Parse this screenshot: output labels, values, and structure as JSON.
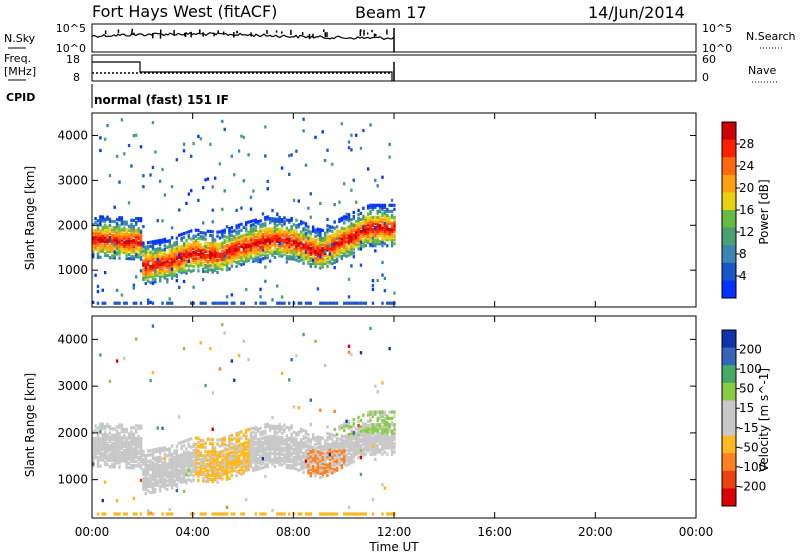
{
  "header": {
    "radar": "Fort Hays West (fitACF)",
    "beam": "Beam 17",
    "date": "14/Jun/2014"
  },
  "summary": {
    "left_labels": {
      "sky": "N.Sky",
      "freq": "Freq.",
      "freq_unit": "[MHz]",
      "cpid": "CPID"
    },
    "right_labels": {
      "search": "N.Search",
      "nave": "Nave"
    },
    "noise_ticks_left": [
      "10^5",
      "10^0"
    ],
    "noise_ticks_right": [
      "10^5",
      "10^0"
    ],
    "freq_ticks": [
      "18",
      "8"
    ],
    "nave_ticks": [
      "60",
      "0"
    ],
    "cpid_text": "normal (fast) 151 IF"
  },
  "colors": {
    "power": [
      "#0033ff",
      "#1a55cc",
      "#3a86b0",
      "#4aa070",
      "#66bb44",
      "#e8d010",
      "#ffa010",
      "#ff6a10",
      "#ff2000",
      "#cc0000"
    ],
    "velocity": [
      "#dd0000",
      "#ee4010",
      "#ff8020",
      "#ffb820",
      "#c8c8c8",
      "#c8c8c8",
      "#88cc44",
      "#44aa66",
      "#3366bb",
      "#1133aa"
    ]
  },
  "chart_data": [
    {
      "type": "heatmap",
      "name": "power-panel",
      "ylabel": "Slant Range [km]",
      "y_ticks": [
        1000,
        2000,
        3000,
        4000
      ],
      "ylim": [
        180,
        4500
      ],
      "x_ticks": [
        "00:00",
        "04:00",
        "08:00",
        "12:00",
        "16:00",
        "20:00",
        "00:00"
      ],
      "xlim_hours": [
        0,
        24
      ],
      "colorbar": {
        "label": "Power [dB]",
        "ticks": [
          "28",
          "24",
          "20",
          "16",
          "12",
          "8",
          "4"
        ]
      },
      "data_extent_hours": [
        0,
        12
      ],
      "main_band": [
        {
          "t": 0.0,
          "range_km": 1750
        },
        {
          "t": 1.95,
          "range_km": 1700
        },
        {
          "t": 2.0,
          "range_km": 1150
        },
        {
          "t": 3.0,
          "range_km": 1250
        },
        {
          "t": 4.0,
          "range_km": 1450
        },
        {
          "t": 5.0,
          "range_km": 1400
        },
        {
          "t": 6.0,
          "range_km": 1600
        },
        {
          "t": 7.0,
          "range_km": 1750
        },
        {
          "t": 8.0,
          "range_km": 1700
        },
        {
          "t": 9.0,
          "range_km": 1450
        },
        {
          "t": 10.0,
          "range_km": 1750
        },
        {
          "t": 11.0,
          "range_km": 2000
        },
        {
          "t": 12.0,
          "range_km": 2000
        }
      ]
    },
    {
      "type": "heatmap",
      "name": "velocity-panel",
      "ylabel": "Slant Range [km]",
      "y_ticks": [
        1000,
        2000,
        3000,
        4000
      ],
      "ylim": [
        180,
        4500
      ],
      "x_ticks": [
        "00:00",
        "04:00",
        "08:00",
        "12:00",
        "16:00",
        "20:00",
        "00:00"
      ],
      "xlabel": "Time UT",
      "xlim_hours": [
        0,
        24
      ],
      "colorbar": {
        "label": "Velocity [m s^-1]",
        "ticks": [
          "200",
          "100",
          "50",
          "15",
          "-15",
          "-50",
          "-100",
          "-200"
        ]
      },
      "data_extent_hours": [
        0,
        12
      ]
    }
  ]
}
